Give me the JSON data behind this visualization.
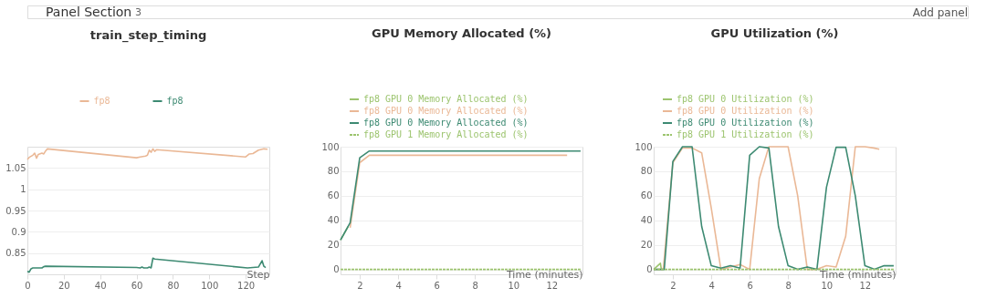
{
  "chart_data": [
    {
      "type": "line",
      "title": "train_step_timing",
      "xlabel": "Step",
      "annotations": [
        "Panel Section",
        "3",
        "Add panel"
      ],
      "xlim": [
        0,
        133
      ],
      "xticks": [
        0,
        20,
        40,
        60,
        80,
        100,
        120
      ],
      "ylim": [
        0.8,
        1.1
      ],
      "yticks": [
        0.85,
        0.9,
        0.95,
        1,
        1.05
      ],
      "grid": "y",
      "legend": "top",
      "line_style": "solid",
      "series": [
        {
          "name": "fp8",
          "color": "#eab896",
          "x": [
            0,
            1,
            3,
            4,
            5,
            6,
            8,
            9,
            10,
            11,
            60,
            62,
            65,
            66,
            67,
            68,
            69,
            70,
            71,
            120,
            122,
            124,
            127,
            130,
            132
          ],
          "values": [
            1.07,
            1.075,
            1.08,
            1.085,
            1.073,
            1.082,
            1.085,
            1.083,
            1.09,
            1.095,
            1.074,
            1.076,
            1.078,
            1.08,
            1.092,
            1.087,
            1.095,
            1.089,
            1.093,
            1.076,
            1.083,
            1.084,
            1.092,
            1.095,
            1.094
          ]
        },
        {
          "name": "fp8",
          "color": "#3d8a72",
          "x": [
            0,
            1,
            2,
            3,
            8,
            9,
            10,
            60,
            62,
            63,
            64,
            66,
            67,
            68,
            69,
            70,
            121,
            127,
            129,
            130,
            131
          ],
          "values": [
            0.807,
            0.805,
            0.813,
            0.815,
            0.815,
            0.818,
            0.819,
            0.816,
            0.815,
            0.817,
            0.815,
            0.815,
            0.817,
            0.815,
            0.838,
            0.836,
            0.815,
            0.817,
            0.832,
            0.819,
            0.816
          ]
        }
      ]
    },
    {
      "type": "line",
      "title": "GPU Memory Allocated (%)",
      "xlabel": "Time (minutes)",
      "xlim": [
        1,
        13.6
      ],
      "xticks": [
        2,
        4,
        6,
        8,
        10,
        12
      ],
      "ylim": [
        -4,
        100
      ],
      "yticks": [
        0,
        20,
        40,
        60,
        80,
        100
      ],
      "grid": "y",
      "legend": "top",
      "series": [
        {
          "name": "fp8 GPU 0 Memory Allocated (%)",
          "color": "#9cc46e",
          "line_style": "solid",
          "x": [
            1,
            1.4
          ],
          "values": [
            24,
            35
          ]
        },
        {
          "name": "fp8 GPU 0 Memory Allocated (%)",
          "color": "#eab896",
          "line_style": "solid",
          "x": [
            1.5,
            2,
            2.5,
            12.8
          ],
          "values": [
            34,
            87,
            93,
            93
          ]
        },
        {
          "name": "fp8 GPU 0 Memory Allocated (%)",
          "color": "#3d8a72",
          "line_style": "solid",
          "x": [
            1,
            1.5,
            2,
            2.5,
            13.5
          ],
          "values": [
            24,
            38,
            91,
            96.5,
            96.5
          ]
        },
        {
          "name": "fp8 GPU 1 Memory Allocated (%)",
          "color": "#9cc46e",
          "line_style": "dashed",
          "x": [
            1,
            13.5
          ],
          "values": [
            0,
            0
          ]
        }
      ]
    },
    {
      "type": "line",
      "title": "GPU Utilization (%)",
      "xlabel": "Time (minutes)",
      "xlim": [
        1,
        13.6
      ],
      "xticks": [
        2,
        4,
        6,
        8,
        10,
        12
      ],
      "ylim": [
        -4,
        100
      ],
      "yticks": [
        0,
        20,
        40,
        60,
        80,
        100
      ],
      "grid": "y",
      "legend": "top",
      "series": [
        {
          "name": "fp8 GPU 0 Utilization (%)",
          "color": "#9cc46e",
          "line_style": "solid",
          "x": [
            1,
            1.35,
            1.4
          ],
          "values": [
            0,
            5,
            0
          ]
        },
        {
          "name": "fp8 GPU 0 Utilization (%)",
          "color": "#eab896",
          "line_style": "solid",
          "x": [
            1,
            1.5,
            2,
            2.5,
            3,
            3.5,
            4,
            4.5,
            5,
            5.5,
            6,
            6.5,
            7,
            8,
            8.5,
            9,
            9.5,
            10,
            10.5,
            11,
            11.5,
            12,
            12.45,
            12.75
          ],
          "values": [
            0,
            0,
            87,
            99,
            99,
            95,
            50,
            0,
            2,
            4,
            0,
            74,
            100,
            100,
            60,
            0,
            0,
            3,
            2,
            27,
            100,
            100,
            99,
            98
          ]
        },
        {
          "name": "fp8 GPU 0 Utilization (%)",
          "color": "#3d8a72",
          "line_style": "solid",
          "x": [
            1,
            1.55,
            2,
            2.5,
            3,
            3.5,
            4,
            4.5,
            5,
            5.5,
            6,
            6.5,
            7,
            7.5,
            8,
            8.5,
            9,
            9.5,
            10,
            10.5,
            11,
            11.5,
            12,
            12.5,
            13,
            13.5
          ],
          "values": [
            0,
            0,
            88,
            100,
            100,
            35,
            3,
            1,
            3,
            1,
            93,
            100,
            99,
            35,
            3,
            0,
            2,
            0,
            67,
            99.5,
            99.5,
            60,
            3,
            0,
            3,
            3
          ]
        },
        {
          "name": "fp8 GPU 1 Utilization (%)",
          "color": "#9cc46e",
          "line_style": "dashed",
          "x": [
            1,
            13.5
          ],
          "values": [
            0,
            0
          ]
        }
      ]
    }
  ]
}
